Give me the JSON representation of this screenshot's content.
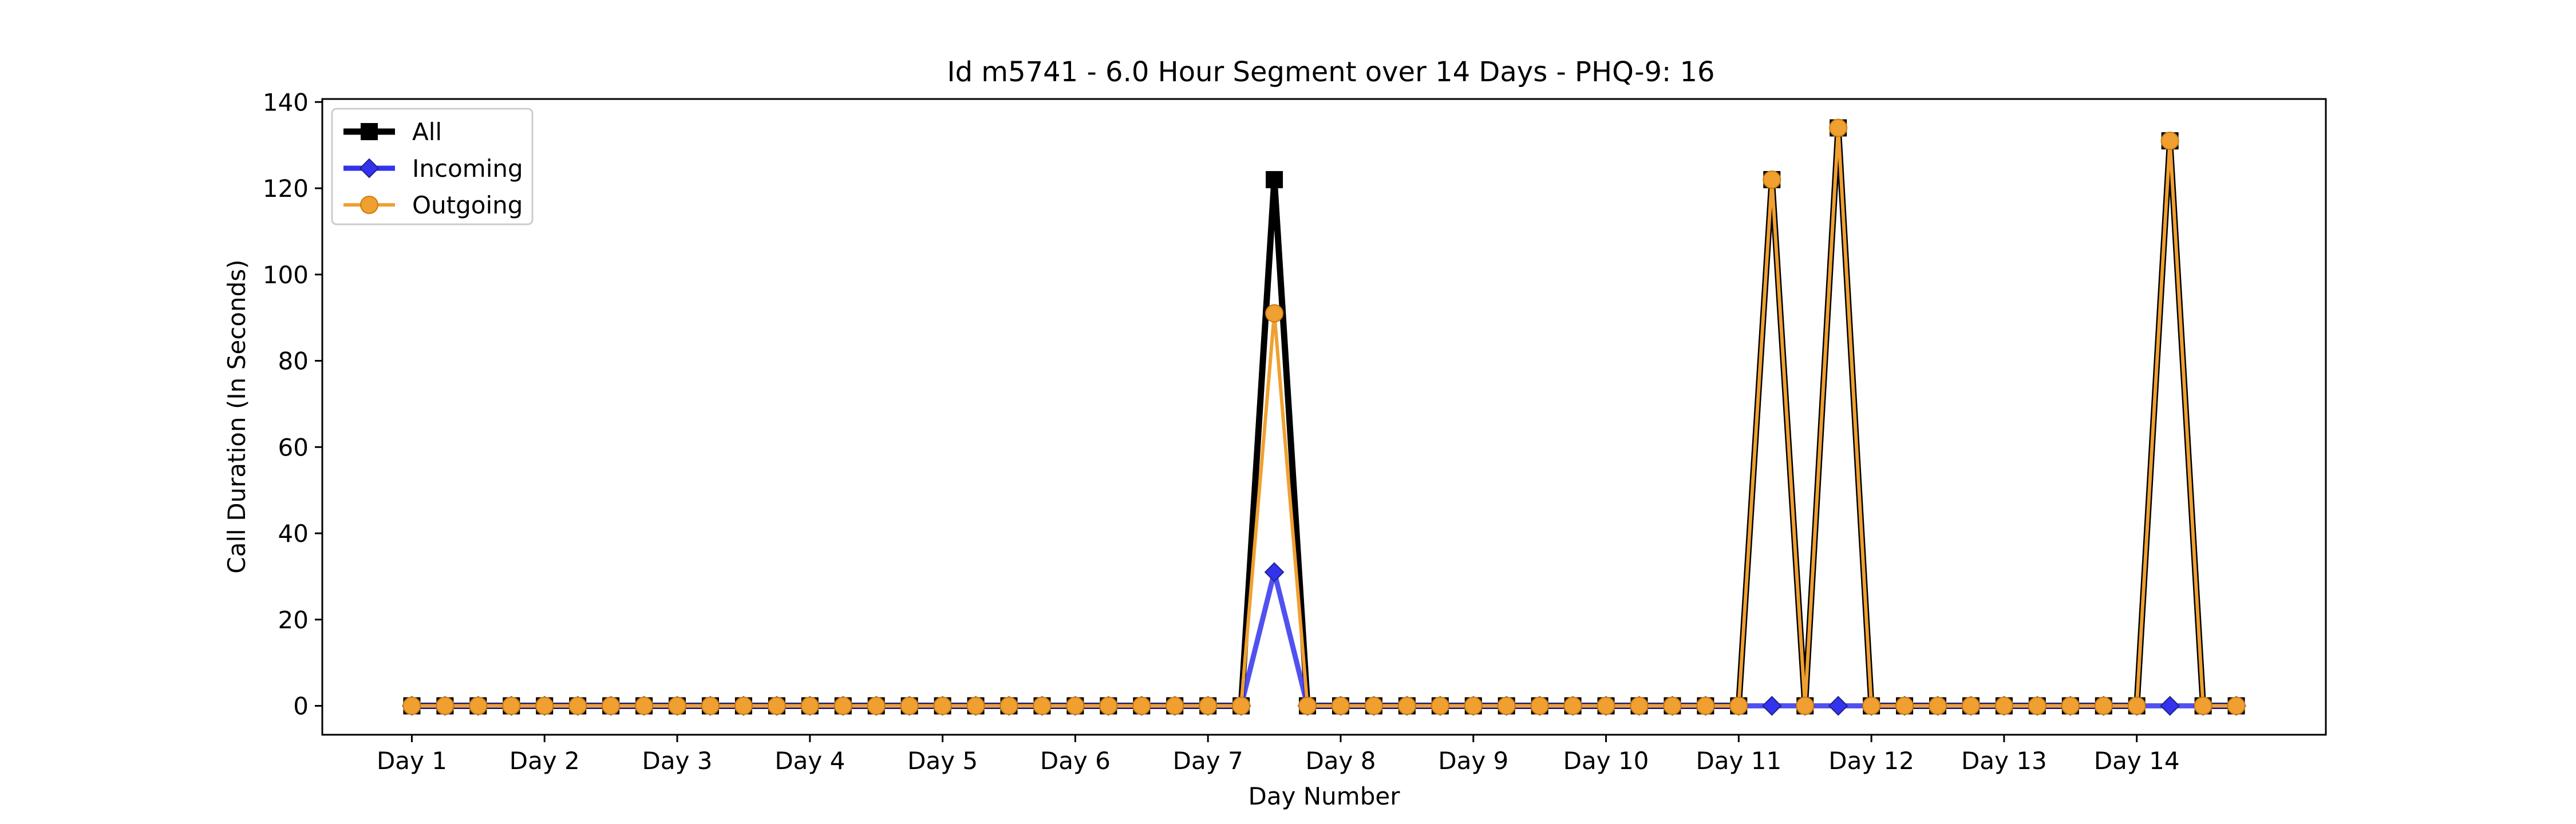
{
  "chart_data": {
    "type": "line",
    "title": "Id m5741 - 6.0 Hour Segment over 14 Days - PHQ-9: 16",
    "xlabel": "Day Number",
    "ylabel": "Call Duration (In Seconds)",
    "ylim": [
      -6.7,
      140.7
    ],
    "yticks": [
      0,
      20,
      40,
      60,
      80,
      100,
      120,
      140
    ],
    "xlim": [
      -2.7,
      57.7
    ],
    "xtick_positions": [
      0,
      4,
      8,
      12,
      16,
      20,
      24,
      28,
      32,
      36,
      40,
      44,
      48,
      52
    ],
    "xtick_labels": [
      "Day 1",
      "Day 2",
      "Day 3",
      "Day 4",
      "Day 5",
      "Day 6",
      "Day 7",
      "Day 8",
      "Day 9",
      "Day 10",
      "Day 11",
      "Day 12",
      "Day 13",
      "Day 14"
    ],
    "grid": false,
    "legend_position": "top-left",
    "series": [
      {
        "name": "All",
        "color": "#000000",
        "marker": "square",
        "values": [
          0,
          0,
          0,
          0,
          0,
          0,
          0,
          0,
          0,
          0,
          0,
          0,
          0,
          0,
          0,
          0,
          0,
          0,
          0,
          0,
          0,
          0,
          0,
          0,
          0,
          0,
          122,
          0,
          0,
          0,
          0,
          0,
          0,
          0,
          0,
          0,
          0,
          0,
          0,
          0,
          0,
          122,
          0,
          134,
          0,
          0,
          0,
          0,
          0,
          0,
          0,
          0,
          0,
          131,
          0,
          0
        ]
      },
      {
        "name": "Incoming",
        "color": "#3333ee",
        "marker": "diamond",
        "values": [
          0,
          0,
          0,
          0,
          0,
          0,
          0,
          0,
          0,
          0,
          0,
          0,
          0,
          0,
          0,
          0,
          0,
          0,
          0,
          0,
          0,
          0,
          0,
          0,
          0,
          0,
          31,
          0,
          0,
          0,
          0,
          0,
          0,
          0,
          0,
          0,
          0,
          0,
          0,
          0,
          0,
          0,
          0,
          0,
          0,
          0,
          0,
          0,
          0,
          0,
          0,
          0,
          0,
          0,
          0,
          0
        ]
      },
      {
        "name": "Outgoing",
        "color": "#f0a030",
        "marker": "circle",
        "values": [
          0,
          0,
          0,
          0,
          0,
          0,
          0,
          0,
          0,
          0,
          0,
          0,
          0,
          0,
          0,
          0,
          0,
          0,
          0,
          0,
          0,
          0,
          0,
          0,
          0,
          0,
          91,
          0,
          0,
          0,
          0,
          0,
          0,
          0,
          0,
          0,
          0,
          0,
          0,
          0,
          0,
          122,
          0,
          134,
          0,
          0,
          0,
          0,
          0,
          0,
          0,
          0,
          0,
          131,
          0,
          0
        ]
      }
    ]
  }
}
